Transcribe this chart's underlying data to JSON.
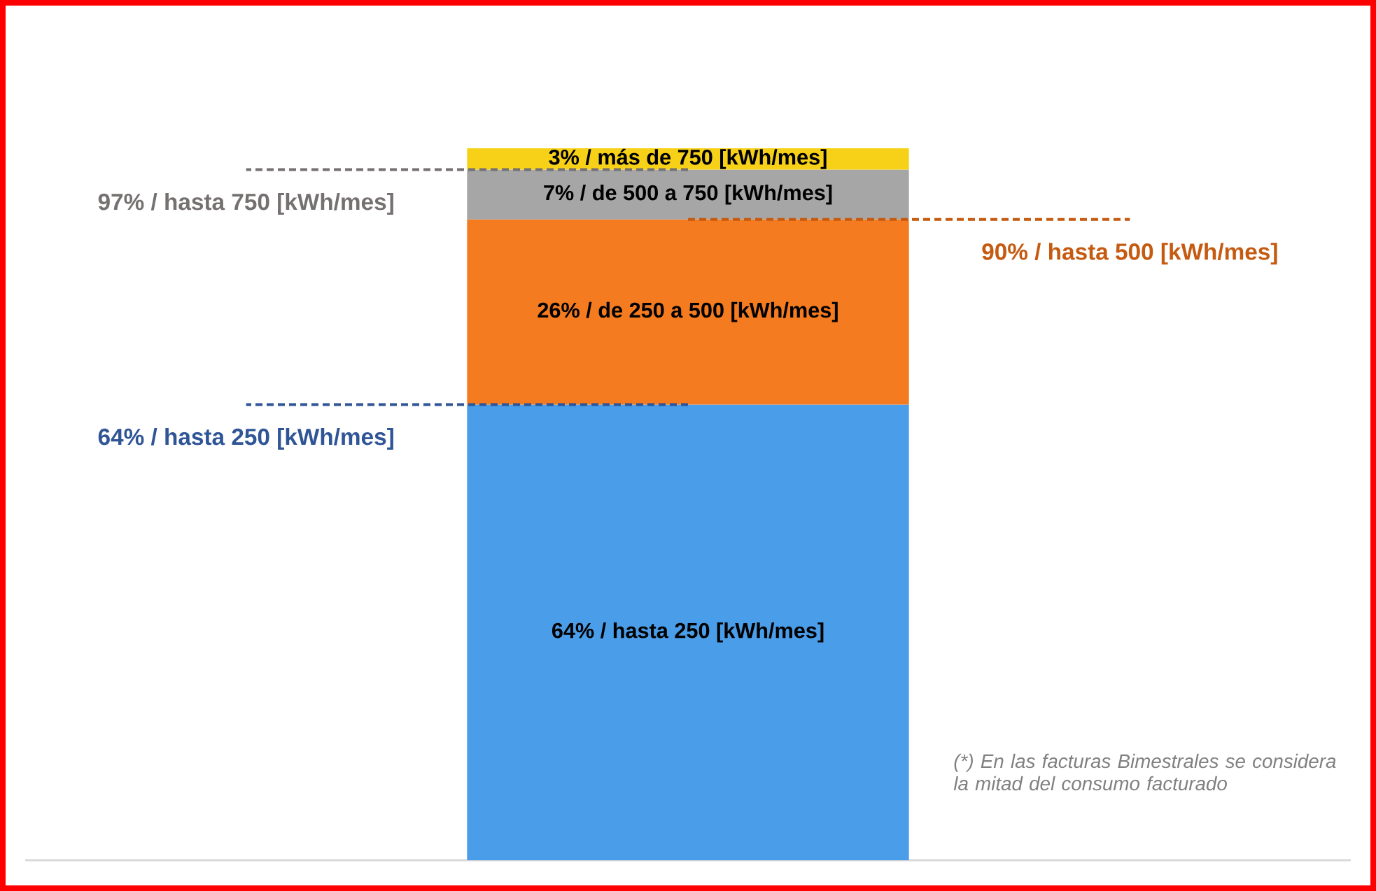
{
  "chart_data": {
    "type": "bar",
    "stacked": true,
    "categories": [
      null
    ],
    "series": [
      {
        "color": "#4a9de8",
        "values": [
          64
        ],
        "value_labels": [
          "64% / hasta 250 [kWh/mes]"
        ]
      },
      {
        "color": "#f47b20",
        "values": [
          26
        ],
        "value_labels": [
          "26% / de 250 a 500 [kWh/mes]"
        ]
      },
      {
        "color": "#a6a6a6",
        "values": [
          7
        ],
        "value_labels": [
          "7% / de 500 a 750 [kWh/mes]"
        ]
      },
      {
        "color": "#f7d117",
        "values": [
          3
        ],
        "value_labels": [
          "3% / más de 750 [kWh/mes]"
        ]
      }
    ],
    "ylim": [
      0,
      100
    ],
    "tick_labels": false,
    "ref_lines": [
      {
        "axis": "y",
        "value": 64,
        "label": "64% / hasta 250 [kWh/mes]",
        "color": "#2f5597",
        "line_style": "dashed"
      },
      {
        "axis": "y",
        "value": 90,
        "label": "90% / hasta 500 [kWh/mes]",
        "color": "#c55a11",
        "line_style": "dashed"
      },
      {
        "axis": "y",
        "value": 97,
        "label": "97% / hasta 750 [kWh/mes]",
        "color": "#767171",
        "line_style": "dashed"
      }
    ],
    "annotations": [
      "(*) En las facturas Bimestrales se considera la mitad del consumo facturado"
    ]
  }
}
